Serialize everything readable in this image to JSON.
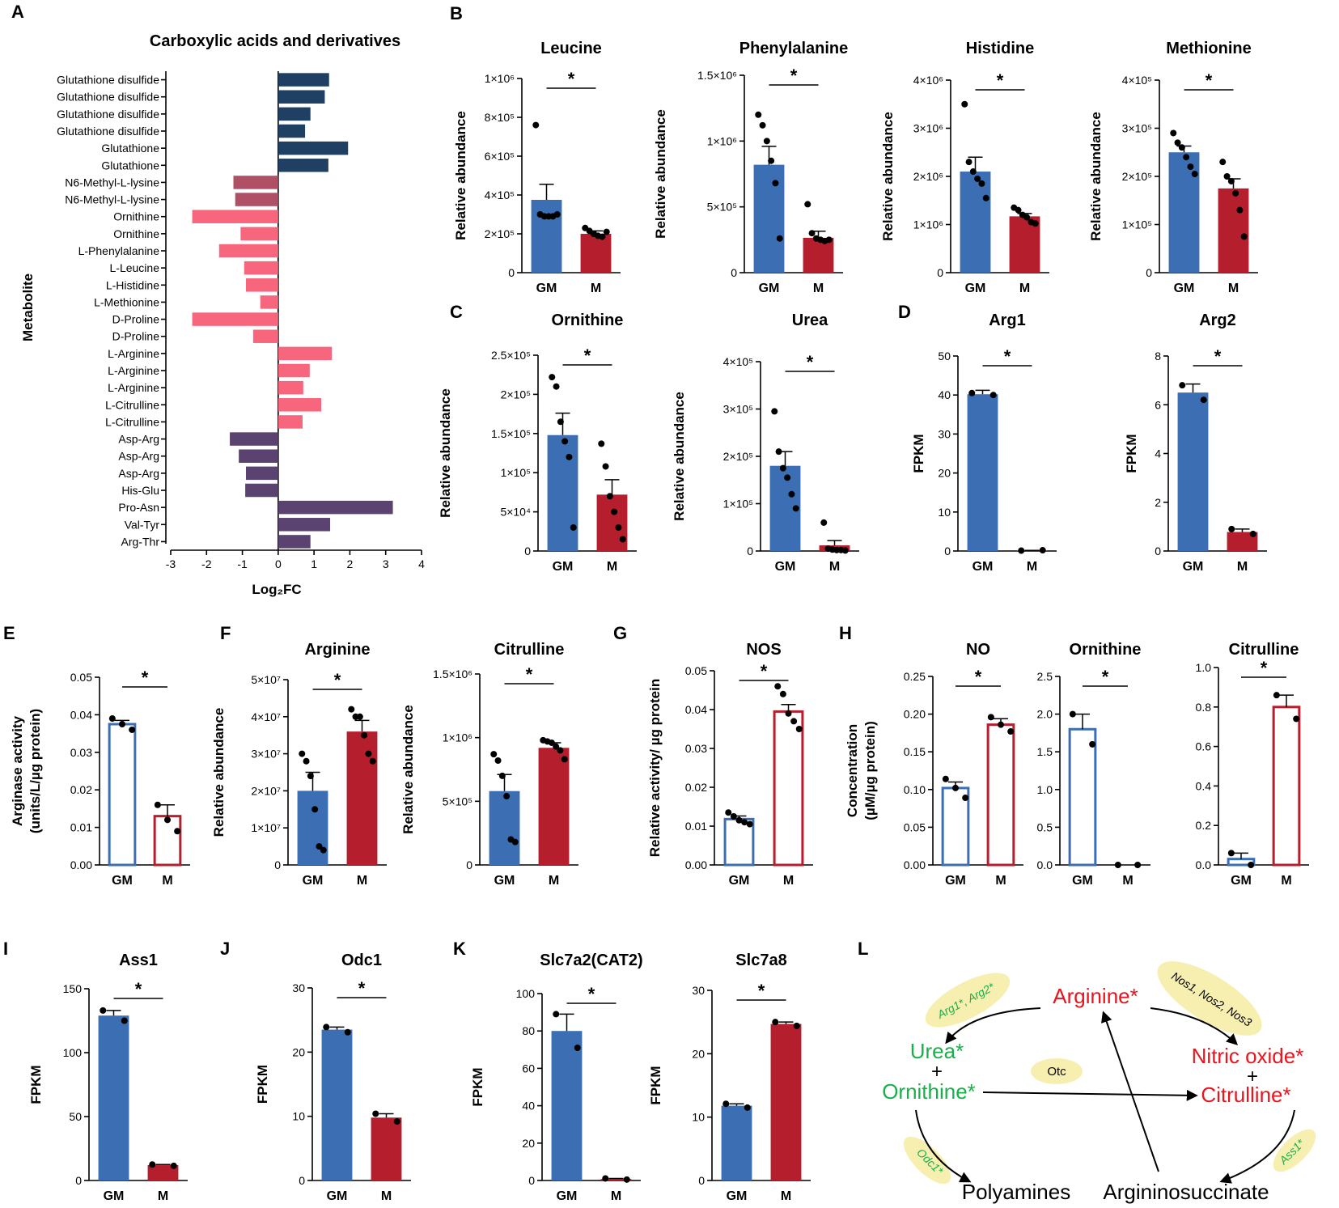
{
  "colors": {
    "gm": "#3C6EB4",
    "m": "#B41E2D",
    "dark_blue": "#1F4063",
    "pink": "#F7667C",
    "mauve": "#B05067",
    "purple": "#5A4370",
    "green": "#1BAF4C",
    "red": "#E8141E",
    "yellow": "#F6EFB0"
  },
  "panel_labels": [
    "A",
    "B",
    "C",
    "D",
    "E",
    "F",
    "G",
    "H",
    "I",
    "J",
    "K",
    "L"
  ],
  "groups": [
    "GM",
    "M"
  ],
  "sig": "*",
  "chart_data": [
    {
      "id": "A",
      "type": "bar",
      "orientation": "horizontal",
      "title": "Carboxylic acids and derivatives",
      "ylabel": "Metabolite",
      "xlabel": "Log₂FC",
      "xlim": [
        -3,
        4
      ],
      "xticks": [
        "-3",
        "-2",
        "-1",
        "0",
        "1",
        "2",
        "3",
        "4"
      ],
      "categories": [
        "Glutathione disulfide",
        "Glutathione disulfide",
        "Glutathione disulfide",
        "Glutathione disulfide",
        "Glutathione",
        "Glutathione",
        "N6-Methyl-L-lysine",
        "N6-Methyl-L-lysine",
        "Ornithine",
        "Ornithine",
        "L-Phenylalanine",
        "L-Leucine",
        "L-Histidine",
        "L-Methionine",
        "D-Proline",
        "D-Proline",
        "L-Arginine",
        "L-Arginine",
        "L-Arginine",
        "L-Citrulline",
        "L-Citrulline",
        "Asp-Arg",
        "Asp-Arg",
        "Asp-Arg",
        "His-Glu",
        "Pro-Asn",
        "Val-Tyr",
        "Arg-Thr"
      ],
      "values": [
        1.42,
        1.3,
        0.9,
        0.75,
        1.95,
        1.4,
        -1.25,
        -1.2,
        -2.4,
        -1.05,
        -1.65,
        -0.95,
        -0.9,
        -0.5,
        -2.4,
        -0.7,
        1.5,
        0.88,
        0.7,
        1.2,
        0.68,
        -1.35,
        -1.1,
        -0.9,
        -0.92,
        3.2,
        1.45,
        0.9
      ],
      "groups": [
        "dark_blue",
        "dark_blue",
        "dark_blue",
        "dark_blue",
        "dark_blue",
        "dark_blue",
        "mauve",
        "mauve",
        "pink",
        "pink",
        "pink",
        "pink",
        "pink",
        "pink",
        "pink",
        "pink",
        "pink",
        "pink",
        "pink",
        "pink",
        "pink",
        "purple",
        "purple",
        "purple",
        "purple",
        "purple",
        "purple",
        "purple"
      ]
    },
    {
      "id": "B1",
      "type": "bar",
      "title": "Leucine",
      "ylabel": "Relative abundance",
      "ylim": [
        0,
        1000000
      ],
      "yticks": [
        "0",
        "2×10⁵",
        "4×10⁵",
        "6×10⁵",
        "8×10⁵",
        "1×10⁶"
      ],
      "categories": [
        "GM",
        "M"
      ],
      "values": [
        375000,
        200000
      ],
      "errors": [
        80000,
        15000
      ],
      "points": [
        [
          760000,
          300000,
          290000,
          290000,
          290000,
          300000
        ],
        [
          230000,
          215000,
          200000,
          190000,
          185000,
          210000
        ]
      ],
      "fill": "solid"
    },
    {
      "id": "B2",
      "type": "bar",
      "title": "Phenylalanine",
      "ylabel": "Relative abundance",
      "ylim": [
        0,
        1500000
      ],
      "yticks": [
        "0",
        "5×10⁵",
        "1×10⁶",
        "1.5×10⁶"
      ],
      "categories": [
        "GM",
        "M"
      ],
      "values": [
        820000,
        265000
      ],
      "errors": [
        140000,
        50000
      ],
      "points": [
        [
          1200000,
          1120000,
          1000000,
          850000,
          680000,
          260000
        ],
        [
          520000,
          300000,
          260000,
          250000,
          240000,
          250000
        ]
      ],
      "fill": "solid"
    },
    {
      "id": "B3",
      "type": "bar",
      "title": "Histidine",
      "ylabel": "Relative abundance",
      "ylim": [
        0,
        4000000
      ],
      "yticks": [
        "0",
        "1×10⁶",
        "2×10⁶",
        "3×10⁶",
        "4×10⁶"
      ],
      "categories": [
        "GM",
        "M"
      ],
      "values": [
        2100000,
        1170000
      ],
      "errors": [
        300000,
        60000
      ],
      "points": [
        [
          3500000,
          2300000,
          2100000,
          1950000,
          1850000,
          1550000
        ],
        [
          1350000,
          1300000,
          1200000,
          1150000,
          1050000,
          1020000
        ]
      ],
      "fill": "solid"
    },
    {
      "id": "B4",
      "type": "bar",
      "title": "Methionine",
      "ylabel": "Relative abundance",
      "ylim": [
        0,
        400000
      ],
      "yticks": [
        "0",
        "1×10⁵",
        "2×10⁵",
        "3×10⁵",
        "4×10⁵"
      ],
      "categories": [
        "GM",
        "M"
      ],
      "values": [
        250000,
        175000
      ],
      "errors": [
        13000,
        20000
      ],
      "points": [
        [
          290000,
          270000,
          260000,
          240000,
          220000,
          205000
        ],
        [
          230000,
          200000,
          190000,
          165000,
          130000,
          75000
        ]
      ],
      "fill": "solid"
    },
    {
      "id": "C1",
      "type": "bar",
      "title": "Ornithine",
      "ylabel": "Relative abundance",
      "ylim": [
        0,
        250000
      ],
      "yticks": [
        "0",
        "5×10⁴",
        "1×10⁵",
        "1.5×10⁵",
        "2×10⁵",
        "2.5×10⁵"
      ],
      "categories": [
        "GM",
        "M"
      ],
      "values": [
        148000,
        72000
      ],
      "errors": [
        28000,
        19000
      ],
      "points": [
        [
          222000,
          210000,
          165000,
          140000,
          120000,
          30000
        ],
        [
          137000,
          108000,
          70000,
          50000,
          30000,
          15000
        ]
      ],
      "fill": "solid"
    },
    {
      "id": "C2",
      "type": "bar",
      "title": "Urea",
      "ylabel": "Relative abundance",
      "ylim": [
        0,
        400000
      ],
      "yticks": [
        "0",
        "1×10⁵",
        "2×10⁵",
        "3×10⁵",
        "4×10⁵"
      ],
      "categories": [
        "GM",
        "M"
      ],
      "values": [
        180000,
        12000
      ],
      "errors": [
        30000,
        10000
      ],
      "points": [
        [
          295000,
          210000,
          175000,
          155000,
          120000,
          90000
        ],
        [
          60000,
          5000,
          3000,
          2000,
          2000,
          1000
        ]
      ],
      "fill": "solid"
    },
    {
      "id": "D1",
      "type": "bar",
      "title": "Arg1",
      "ylabel": "FPKM",
      "ylim": [
        0,
        50
      ],
      "yticks": [
        "0",
        "10",
        "20",
        "30",
        "40",
        "50"
      ],
      "categories": [
        "GM",
        "M"
      ],
      "values": [
        40.2,
        0.1
      ],
      "errors": [
        1.0,
        0.05
      ],
      "points": [
        [
          40.5,
          40.0
        ],
        [
          0.1,
          0.2
        ]
      ],
      "fill": "solid"
    },
    {
      "id": "D2",
      "type": "bar",
      "title": "Arg2",
      "ylabel": "FPKM",
      "ylim": [
        0,
        8
      ],
      "yticks": [
        "0",
        "2",
        "4",
        "6",
        "8"
      ],
      "categories": [
        "GM",
        "M"
      ],
      "values": [
        6.5,
        0.78
      ],
      "errors": [
        0.35,
        0.12
      ],
      "points": [
        [
          6.8,
          6.2
        ],
        [
          0.9,
          0.7
        ]
      ],
      "fill": "solid"
    },
    {
      "id": "E",
      "type": "bar",
      "title": "",
      "ylabel": "Arginase activity\n(units/L/µg protein)",
      "ylim": [
        0,
        0.05
      ],
      "yticks": [
        "0.00",
        "0.01",
        "0.02",
        "0.03",
        "0.04",
        "0.05"
      ],
      "categories": [
        "GM",
        "M"
      ],
      "values": [
        0.0375,
        0.013
      ],
      "errors": [
        0.001,
        0.003
      ],
      "points": [
        [
          0.039,
          0.0375,
          0.036
        ],
        [
          0.016,
          0.012,
          0.009
        ]
      ],
      "fill": "hollow"
    },
    {
      "id": "F1",
      "type": "bar",
      "title": "Arginine",
      "ylabel": "Relative abundance",
      "ylim": [
        0,
        50000000
      ],
      "yticks": [
        "0",
        "1×10⁷",
        "2×10⁷",
        "3×10⁷",
        "4×10⁷",
        "5×10⁷"
      ],
      "categories": [
        "GM",
        "M"
      ],
      "values": [
        20000000,
        36000000
      ],
      "errors": [
        5000000,
        3000000
      ],
      "points": [
        [
          30000000,
          28000000,
          24000000,
          15000000,
          5000000,
          4000000
        ],
        [
          42000000,
          40000000,
          40000000,
          35000000,
          30000000,
          28000000
        ]
      ],
      "fill": "solid"
    },
    {
      "id": "F2",
      "type": "bar",
      "title": "Citrulline",
      "ylabel": "Relative abundance",
      "ylim": [
        0,
        1500000
      ],
      "yticks": [
        "0",
        "5×10⁵",
        "1×10⁶",
        "1.5×10⁶"
      ],
      "categories": [
        "GM",
        "M"
      ],
      "values": [
        580000,
        920000
      ],
      "errors": [
        130000,
        40000
      ],
      "points": [
        [
          870000,
          820000,
          700000,
          540000,
          200000,
          180000
        ],
        [
          980000,
          970000,
          960000,
          930000,
          900000,
          830000
        ]
      ],
      "fill": "solid"
    },
    {
      "id": "G",
      "type": "bar",
      "title": "NOS",
      "ylabel": "Relative activity/ µg protein",
      "ylim": [
        0,
        0.05
      ],
      "yticks": [
        "0.00",
        "0.01",
        "0.02",
        "0.03",
        "0.04",
        "0.05"
      ],
      "categories": [
        "GM",
        "M"
      ],
      "values": [
        0.0118,
        0.0395
      ],
      "errors": [
        0.0008,
        0.0018
      ],
      "points": [
        [
          0.0135,
          0.0125,
          0.0115,
          0.011,
          0.0105
        ],
        [
          0.046,
          0.044,
          0.039,
          0.037,
          0.035
        ]
      ],
      "fill": "hollow"
    },
    {
      "id": "H1",
      "type": "bar",
      "title": "NO",
      "ylabel": "Concentration\n(µM/µg protein)",
      "ylim": [
        0,
        0.25
      ],
      "yticks": [
        "0.00",
        "0.05",
        "0.10",
        "0.15",
        "0.20",
        "0.25"
      ],
      "categories": [
        "GM",
        "M"
      ],
      "values": [
        0.102,
        0.186
      ],
      "errors": [
        0.008,
        0.008
      ],
      "points": [
        [
          0.114,
          0.102,
          0.089
        ],
        [
          0.196,
          0.186,
          0.177
        ]
      ],
      "fill": "hollow"
    },
    {
      "id": "H2",
      "type": "bar",
      "title": "Ornithine",
      "ylabel": "",
      "ylim": [
        0,
        2.5
      ],
      "yticks": [
        "0.0",
        "0.5",
        "1.0",
        "1.5",
        "2.0",
        "2.5"
      ],
      "categories": [
        "GM",
        "M"
      ],
      "values": [
        1.8,
        0.0
      ],
      "errors": [
        0.2,
        0.0
      ],
      "points": [
        [
          2.0,
          1.6
        ],
        [
          0.0,
          0.0
        ]
      ],
      "fill": "hollow"
    },
    {
      "id": "H3",
      "type": "bar",
      "title": "Citrulline",
      "ylabel": "",
      "ylim": [
        0,
        1.0
      ],
      "yticks": [
        "0.0",
        "0.2",
        "0.4",
        "0.6",
        "0.8",
        "1.0"
      ],
      "categories": [
        "GM",
        "M"
      ],
      "values": [
        0.03,
        0.8
      ],
      "errors": [
        0.03,
        0.06
      ],
      "points": [
        [
          0.06,
          0.0
        ],
        [
          0.86,
          0.74
        ]
      ],
      "fill": "hollow"
    },
    {
      "id": "I",
      "type": "bar",
      "title": "Ass1",
      "ylabel": "FPKM",
      "ylim": [
        0,
        150
      ],
      "yticks": [
        "0",
        "50",
        "100",
        "150"
      ],
      "categories": [
        "GM",
        "M"
      ],
      "values": [
        129,
        12
      ],
      "errors": [
        4,
        0.5
      ],
      "points": [
        [
          133,
          125
        ],
        [
          12.5,
          11.5
        ]
      ],
      "fill": "solid"
    },
    {
      "id": "J",
      "type": "bar",
      "title": "Odc1",
      "ylabel": "FPKM",
      "ylim": [
        0,
        30
      ],
      "yticks": [
        "0",
        "10",
        "20",
        "30"
      ],
      "categories": [
        "GM",
        "M"
      ],
      "values": [
        23.5,
        9.8
      ],
      "errors": [
        0.4,
        0.6
      ],
      "points": [
        [
          23.9,
          23.1
        ],
        [
          10.4,
          9.2
        ]
      ],
      "fill": "solid"
    },
    {
      "id": "K1",
      "type": "bar",
      "title": "Slc7a2(CAT2)",
      "ylabel": "FPKM",
      "ylim": [
        0,
        100
      ],
      "yticks": [
        "0",
        "20",
        "40",
        "60",
        "80",
        "100"
      ],
      "categories": [
        "GM",
        "M"
      ],
      "values": [
        80,
        0.8
      ],
      "errors": [
        9,
        0.3
      ],
      "points": [
        [
          89,
          71
        ],
        [
          1.1,
          0.5
        ]
      ],
      "fill": "solid"
    },
    {
      "id": "K2",
      "type": "bar",
      "title": "Slc7a8",
      "ylabel": "FPKM",
      "ylim": [
        0,
        30
      ],
      "yticks": [
        "0",
        "10",
        "20",
        "30"
      ],
      "categories": [
        "GM",
        "M"
      ],
      "values": [
        11.8,
        24.7
      ],
      "errors": [
        0.3,
        0.3
      ],
      "points": [
        [
          12.1,
          11.5
        ],
        [
          25.0,
          24.4
        ]
      ],
      "fill": "solid"
    }
  ],
  "pathway": {
    "arginine": "Arginine*",
    "urea": "Urea*",
    "plus1": "+",
    "ornithine": "Ornithine*",
    "nitric_oxide": "Nitric oxide*",
    "plus2": "+",
    "citrulline": "Citrulline*",
    "polyamines": "Polyamines",
    "argininosuccinate": "Argininosuccinate",
    "enz_arg": "Arg1*, Arg2*",
    "enz_nos": "Nos1, Nos2, Nos3",
    "enz_otc": "Otc",
    "enz_odc": "Odc1*",
    "enz_ass": "Ass1*"
  }
}
